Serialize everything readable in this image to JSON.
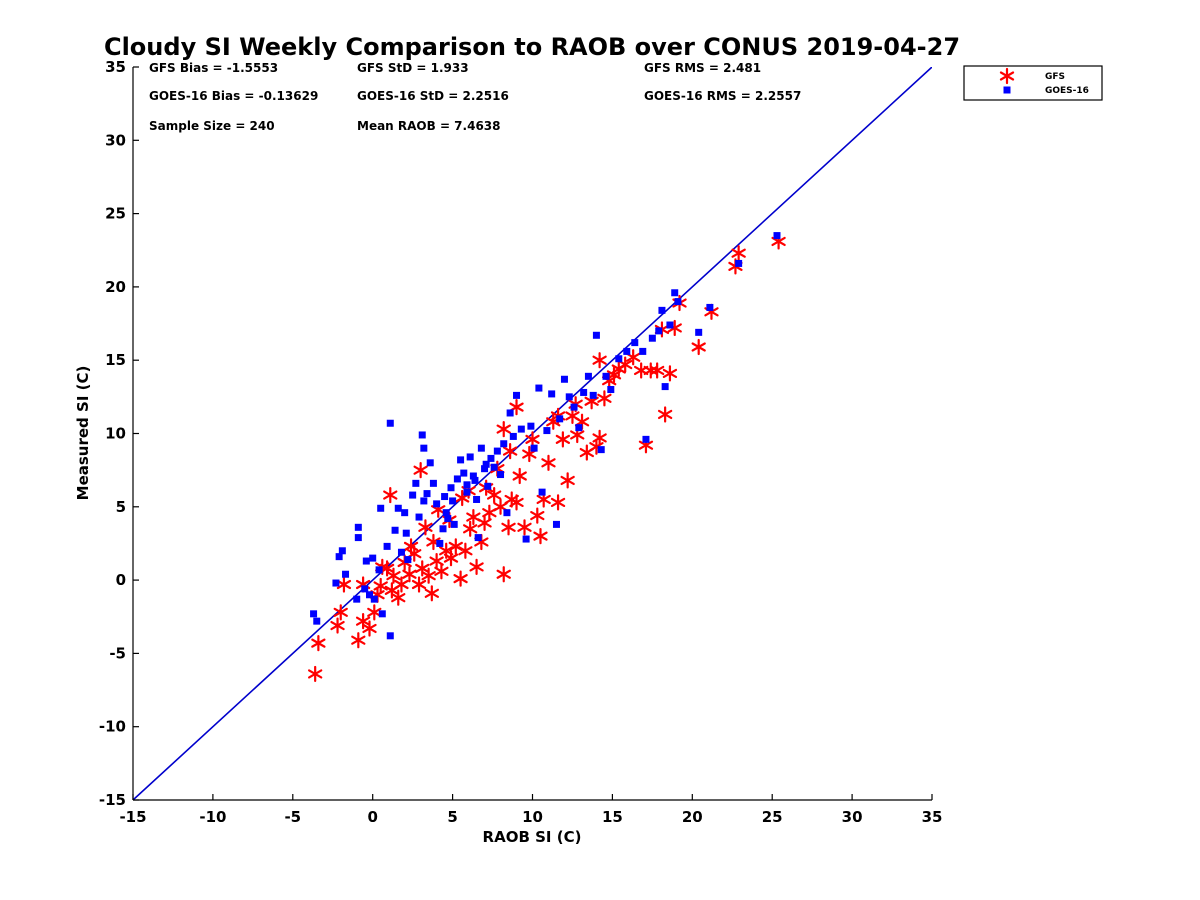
{
  "chart_data": {
    "type": "scatter",
    "title": "Cloudy SI Weekly Comparison to RAOB over CONUS 2019-04-27",
    "xlabel": "RAOB SI (C)",
    "ylabel": "Measured SI (C)",
    "xlim": [
      -15,
      35
    ],
    "ylim": [
      -15,
      35
    ],
    "xticks": [
      "-15",
      "-10",
      "-5",
      "0",
      "5",
      "10",
      "15",
      "20",
      "25",
      "30",
      "35"
    ],
    "yticks": [
      "-15",
      "-10",
      "-5",
      "0",
      "5",
      "10",
      "15",
      "20",
      "25",
      "30",
      "35"
    ],
    "grid": false,
    "legend_position": "outside-top-right",
    "reference_line": {
      "x": [
        -15,
        35
      ],
      "y": [
        -15,
        35
      ],
      "color": "#0000cc"
    },
    "stats": [
      [
        "GFS Bias = -1.5553",
        "GFS StD = 1.933",
        "GFS RMS = 2.481"
      ],
      [
        "GOES-16 Bias = -0.13629",
        "GOES-16 StD = 2.2516",
        "GOES-16 RMS = 2.2557"
      ],
      [
        "Sample Size = 240",
        "Mean RAOB = 7.4638",
        ""
      ]
    ],
    "series": [
      {
        "name": "GFS",
        "marker": "asterisk",
        "color": "#ff0000",
        "points": [
          [
            -3.6,
            -6.4
          ],
          [
            -3.4,
            -4.3
          ],
          [
            -2.2,
            -3.1
          ],
          [
            -2.0,
            -2.2
          ],
          [
            -1.8,
            -0.3
          ],
          [
            -0.9,
            -4.1
          ],
          [
            -0.6,
            -2.8
          ],
          [
            -0.2,
            -3.3
          ],
          [
            0.1,
            -2.2
          ],
          [
            -0.6,
            -0.3
          ],
          [
            0.3,
            -1.0
          ],
          [
            0.5,
            -0.4
          ],
          [
            0.9,
            0.8
          ],
          [
            1.3,
            0.3
          ],
          [
            1.6,
            -1.2
          ],
          [
            1.8,
            -0.3
          ],
          [
            2.0,
            1.2
          ],
          [
            2.3,
            0.4
          ],
          [
            2.6,
            1.8
          ],
          [
            2.9,
            -0.3
          ],
          [
            3.1,
            0.8
          ],
          [
            3.5,
            0.3
          ],
          [
            3.7,
            -0.9
          ],
          [
            4.0,
            1.3
          ],
          [
            4.3,
            0.6
          ],
          [
            4.6,
            2.0
          ],
          [
            4.9,
            1.5
          ],
          [
            5.2,
            2.3
          ],
          [
            5.5,
            0.1
          ],
          [
            5.8,
            2.0
          ],
          [
            6.1,
            3.5
          ],
          [
            6.5,
            0.9
          ],
          [
            6.8,
            2.6
          ],
          [
            7.0,
            3.9
          ],
          [
            7.3,
            4.6
          ],
          [
            7.6,
            5.8
          ],
          [
            8.0,
            5.0
          ],
          [
            8.2,
            0.4
          ],
          [
            8.5,
            3.6
          ],
          [
            8.7,
            5.5
          ],
          [
            9.0,
            5.3
          ],
          [
            9.2,
            7.1
          ],
          [
            9.5,
            3.6
          ],
          [
            9.8,
            8.6
          ],
          [
            10.0,
            9.6
          ],
          [
            10.3,
            4.4
          ],
          [
            10.5,
            3.0
          ],
          [
            10.7,
            5.5
          ],
          [
            11.0,
            8.0
          ],
          [
            11.3,
            10.8
          ],
          [
            11.6,
            5.3
          ],
          [
            11.9,
            9.6
          ],
          [
            12.2,
            6.8
          ],
          [
            12.5,
            11.2
          ],
          [
            12.8,
            9.9
          ],
          [
            13.1,
            10.8
          ],
          [
            13.4,
            8.7
          ],
          [
            13.7,
            12.2
          ],
          [
            14.0,
            9.1
          ],
          [
            14.2,
            9.7
          ],
          [
            14.5,
            12.4
          ],
          [
            14.8,
            13.6
          ],
          [
            15.1,
            14.0
          ],
          [
            15.4,
            14.4
          ],
          [
            15.8,
            14.7
          ],
          [
            16.3,
            15.2
          ],
          [
            16.8,
            14.3
          ],
          [
            17.1,
            9.2
          ],
          [
            17.4,
            14.3
          ],
          [
            17.8,
            14.3
          ],
          [
            18.1,
            17.1
          ],
          [
            18.3,
            11.3
          ],
          [
            18.6,
            14.1
          ],
          [
            18.9,
            17.2
          ],
          [
            19.2,
            18.9
          ],
          [
            20.4,
            15.9
          ],
          [
            21.2,
            18.3
          ],
          [
            22.7,
            21.4
          ],
          [
            22.9,
            22.3
          ],
          [
            25.4,
            23.1
          ],
          [
            1.1,
            5.8
          ],
          [
            3.0,
            7.5
          ],
          [
            8.2,
            10.3
          ],
          [
            9.0,
            11.8
          ],
          [
            14.2,
            15.0
          ],
          [
            2.4,
            2.3
          ],
          [
            3.3,
            3.6
          ],
          [
            4.1,
            4.8
          ],
          [
            4.8,
            4.1
          ],
          [
            5.6,
            5.6
          ],
          [
            6.3,
            4.3
          ],
          [
            7.1,
            6.3
          ],
          [
            7.8,
            7.6
          ],
          [
            8.6,
            8.8
          ],
          [
            11.6,
            11.2
          ],
          [
            12.7,
            12.0
          ],
          [
            6.0,
            6.1
          ],
          [
            3.8,
            2.6
          ],
          [
            1.2,
            -0.7
          ],
          [
            0.6,
            0.9
          ]
        ]
      },
      {
        "name": "GOES-16",
        "marker": "square",
        "color": "#0000ff",
        "points": [
          [
            -3.7,
            -2.3
          ],
          [
            -3.5,
            -2.8
          ],
          [
            -2.3,
            -0.2
          ],
          [
            -2.1,
            1.6
          ],
          [
            -1.9,
            2.0
          ],
          [
            -1.7,
            0.4
          ],
          [
            -1.0,
            -1.3
          ],
          [
            -0.9,
            2.9
          ],
          [
            -0.9,
            3.6
          ],
          [
            -0.5,
            -0.6
          ],
          [
            -0.4,
            1.3
          ],
          [
            -0.2,
            -1.0
          ],
          [
            0.0,
            1.5
          ],
          [
            0.1,
            -1.3
          ],
          [
            0.4,
            0.7
          ],
          [
            0.5,
            4.9
          ],
          [
            0.6,
            -2.3
          ],
          [
            0.9,
            2.3
          ],
          [
            1.1,
            10.7
          ],
          [
            1.1,
            -3.8
          ],
          [
            1.4,
            3.4
          ],
          [
            1.6,
            4.9
          ],
          [
            1.8,
            1.9
          ],
          [
            2.0,
            4.6
          ],
          [
            2.2,
            1.4
          ],
          [
            2.5,
            5.8
          ],
          [
            2.7,
            6.6
          ],
          [
            2.9,
            4.3
          ],
          [
            3.1,
            9.9
          ],
          [
            3.2,
            9.0
          ],
          [
            3.4,
            5.9
          ],
          [
            3.6,
            8.0
          ],
          [
            3.8,
            6.6
          ],
          [
            4.0,
            5.2
          ],
          [
            4.2,
            2.5
          ],
          [
            4.4,
            3.5
          ],
          [
            4.5,
            5.7
          ],
          [
            4.7,
            4.2
          ],
          [
            4.9,
            6.3
          ],
          [
            5.1,
            3.8
          ],
          [
            5.3,
            6.9
          ],
          [
            5.5,
            8.2
          ],
          [
            5.7,
            7.3
          ],
          [
            5.9,
            6.0
          ],
          [
            6.1,
            8.4
          ],
          [
            6.3,
            7.1
          ],
          [
            6.5,
            5.5
          ],
          [
            6.6,
            2.9
          ],
          [
            6.8,
            9.0
          ],
          [
            7.0,
            7.6
          ],
          [
            7.2,
            6.4
          ],
          [
            7.4,
            8.3
          ],
          [
            7.6,
            7.7
          ],
          [
            7.8,
            8.8
          ],
          [
            8.0,
            7.2
          ],
          [
            8.2,
            9.3
          ],
          [
            8.4,
            4.6
          ],
          [
            8.6,
            11.4
          ],
          [
            8.8,
            9.8
          ],
          [
            9.0,
            12.6
          ],
          [
            9.3,
            10.3
          ],
          [
            9.6,
            2.8
          ],
          [
            9.9,
            10.5
          ],
          [
            10.1,
            9.0
          ],
          [
            10.4,
            13.1
          ],
          [
            10.6,
            6.0
          ],
          [
            10.9,
            10.2
          ],
          [
            11.2,
            12.7
          ],
          [
            11.5,
            3.8
          ],
          [
            11.7,
            11.0
          ],
          [
            12.0,
            13.7
          ],
          [
            12.3,
            12.5
          ],
          [
            12.6,
            11.8
          ],
          [
            12.9,
            10.4
          ],
          [
            13.2,
            12.8
          ],
          [
            13.5,
            13.9
          ],
          [
            13.8,
            12.6
          ],
          [
            14.0,
            16.7
          ],
          [
            14.3,
            8.9
          ],
          [
            14.6,
            13.9
          ],
          [
            14.9,
            13.0
          ],
          [
            15.4,
            15.1
          ],
          [
            15.9,
            15.6
          ],
          [
            16.4,
            16.2
          ],
          [
            16.9,
            15.6
          ],
          [
            17.1,
            9.6
          ],
          [
            17.5,
            16.5
          ],
          [
            17.9,
            17.0
          ],
          [
            18.1,
            18.4
          ],
          [
            18.3,
            13.2
          ],
          [
            18.6,
            17.4
          ],
          [
            18.9,
            19.6
          ],
          [
            19.1,
            19.0
          ],
          [
            20.4,
            16.9
          ],
          [
            21.1,
            18.6
          ],
          [
            22.9,
            21.6
          ],
          [
            25.3,
            23.5
          ],
          [
            4.6,
            4.6
          ],
          [
            5.0,
            5.4
          ],
          [
            5.9,
            6.5
          ],
          [
            6.4,
            6.8
          ],
          [
            7.1,
            7.9
          ],
          [
            3.2,
            5.4
          ],
          [
            2.1,
            3.2
          ]
        ]
      }
    ]
  }
}
